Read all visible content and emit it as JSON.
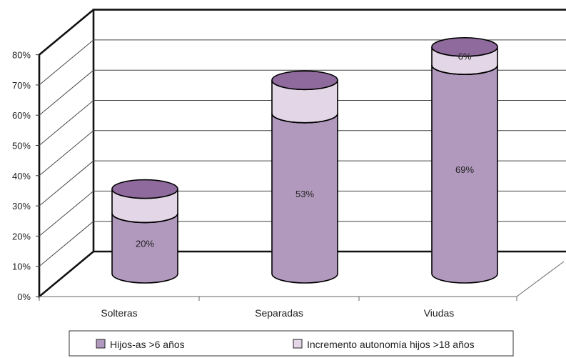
{
  "chart_data": {
    "type": "bar",
    "style": "3d-cylinder-stacked",
    "categories": [
      "Solteras",
      "Separadas",
      "Viudas"
    ],
    "series": [
      {
        "name": "Hijos-as >6 años",
        "values": [
          20,
          53,
          69
        ],
        "data_labels": [
          "20%",
          "53%",
          "69%"
        ],
        "color": "#b199bd"
      },
      {
        "name": "Incremento autonomía hijos >18 años",
        "values": [
          8,
          11,
          6
        ],
        "data_labels": [
          "",
          "",
          "6%"
        ],
        "color": "#e3d6e6"
      }
    ],
    "top_color": "#8f6a9d",
    "y_ticks": [
      "0%",
      "10%",
      "20%",
      "30%",
      "40%",
      "50%",
      "60%",
      "70%",
      "80%"
    ],
    "ylim": [
      0,
      80
    ],
    "grid": true,
    "legend_position": "bottom"
  }
}
